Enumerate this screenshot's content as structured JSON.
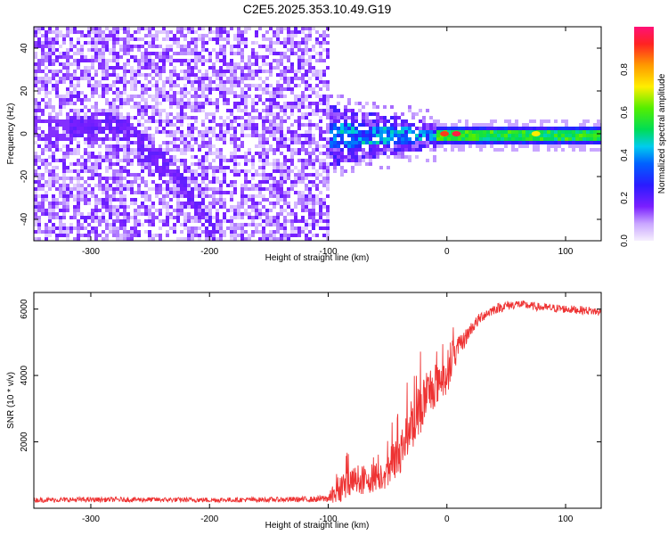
{
  "chart_data": [
    {
      "type": "heatmap",
      "title": "C2E5.2025.353.10.49.G19",
      "xlabel": "Height of straight line (km)",
      "ylabel": "Frequency (Hz)",
      "xlim": [
        -348,
        130
      ],
      "ylim": [
        -50,
        50
      ],
      "xticks": [
        -300,
        -200,
        -100,
        0,
        100
      ],
      "yticks": [
        -40,
        -20,
        0,
        20,
        40
      ],
      "colorbar": {
        "label": "Normalized spectral amplitude",
        "range": [
          0,
          1
        ],
        "ticks": [
          "0.0",
          "0.2",
          "0.4",
          "0.6",
          "0.8"
        ],
        "tick_values": [
          0,
          0.2,
          0.4,
          0.6,
          0.8
        ]
      },
      "regions": [
        {
          "name": "noise",
          "x_range": [
            -348,
            -100
          ],
          "y_range": [
            -50,
            50
          ],
          "amplitude": 0.12
        },
        {
          "name": "doppler-trace",
          "points": [
            [
              -320,
              4
            ],
            [
              -290,
              6
            ],
            [
              -270,
              2
            ],
            [
              -250,
              -8
            ],
            [
              -230,
              -18
            ],
            [
              -210,
              -35
            ],
            [
              -195,
              -48
            ]
          ],
          "amplitude": 0.15
        },
        {
          "name": "signal-transition",
          "x_range": [
            -100,
            -10
          ],
          "y_range": [
            -10,
            10
          ],
          "amplitude": 0.4
        },
        {
          "name": "carrier-line",
          "x_range": [
            -10,
            130
          ],
          "y_range": [
            -2,
            2
          ],
          "amplitude": 0.55
        }
      ]
    },
    {
      "type": "line",
      "xlabel": "Height of straight line (km)",
      "ylabel": "SNR (10 * v/v)",
      "xlim": [
        -348,
        130
      ],
      "ylim": [
        0,
        6500
      ],
      "xticks": [
        -300,
        -200,
        -100,
        0,
        100
      ],
      "yticks": [
        2000,
        4000,
        6000
      ],
      "color": "#ee3333",
      "series": [
        {
          "name": "SNR",
          "x": [
            -348,
            -300,
            -250,
            -200,
            -150,
            -110,
            -100,
            -90,
            -80,
            -70,
            -60,
            -50,
            -40,
            -30,
            -20,
            -10,
            0,
            10,
            20,
            30,
            40,
            50,
            60,
            80,
            100,
            120,
            130
          ],
          "y": [
            250,
            260,
            260,
            250,
            260,
            270,
            300,
            650,
            800,
            850,
            950,
            1150,
            1700,
            2500,
            3200,
            3800,
            4100,
            4800,
            5400,
            5800,
            6000,
            6100,
            6150,
            6050,
            6000,
            5950,
            5900
          ],
          "spread": [
            150,
            150,
            150,
            150,
            150,
            180,
            250,
            900,
            1000,
            900,
            900,
            1100,
            1400,
            1600,
            1600,
            1500,
            1300,
            700,
            400,
            350,
            300,
            300,
            250,
            250,
            250,
            250,
            250
          ]
        }
      ]
    }
  ]
}
